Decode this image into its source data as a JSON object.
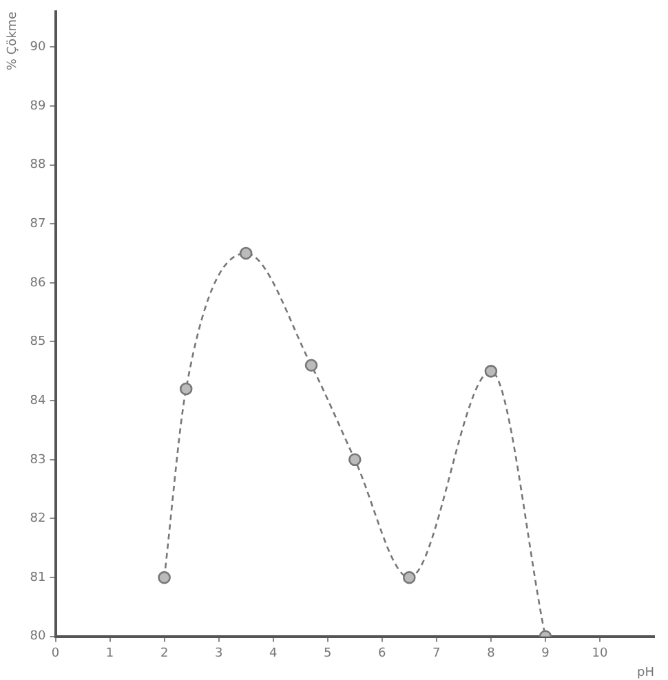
{
  "chart_data": {
    "type": "line",
    "xlabel": "pH",
    "ylabel": "% Çökme",
    "x": [
      2,
      2.4,
      3.5,
      4.7,
      5.5,
      6.5,
      8,
      9
    ],
    "series": [
      {
        "color": "#777777",
        "values": [
          81,
          84.2,
          86.5,
          84.6,
          83,
          81,
          84.5,
          80
        ]
      }
    ],
    "xlim": [
      0,
      11
    ],
    "xticks": [
      0,
      1,
      2,
      3,
      4,
      5,
      6,
      7,
      8,
      9,
      10
    ],
    "ylim": [
      80,
      90.6
    ],
    "yticks": [
      80,
      81,
      82,
      83,
      84,
      85,
      86,
      87,
      88,
      89,
      90
    ],
    "grid": false,
    "legend": false,
    "marker": "circle",
    "line_style": "dashed"
  }
}
